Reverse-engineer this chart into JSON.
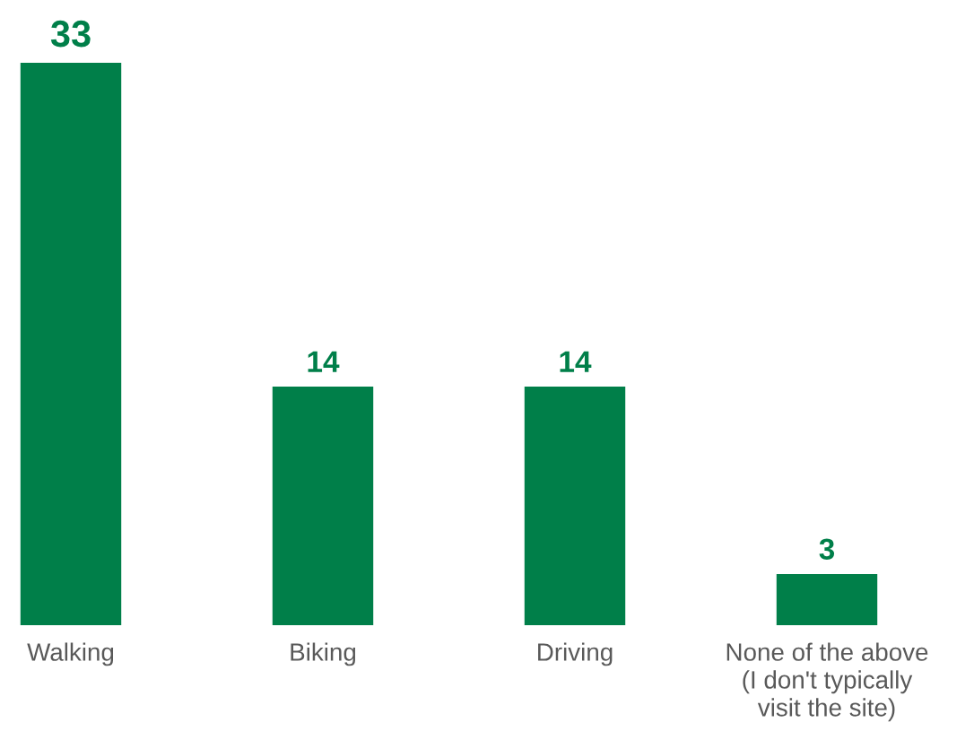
{
  "chart_data": {
    "type": "bar",
    "categories": [
      "Walking",
      "Biking",
      "Driving",
      "None of the above\n(I don't typically\nvisit the site)"
    ],
    "values": [
      33,
      14,
      14,
      3
    ],
    "color": "#007f49",
    "data_labels": true,
    "grid": false,
    "tick_labels": "x"
  }
}
